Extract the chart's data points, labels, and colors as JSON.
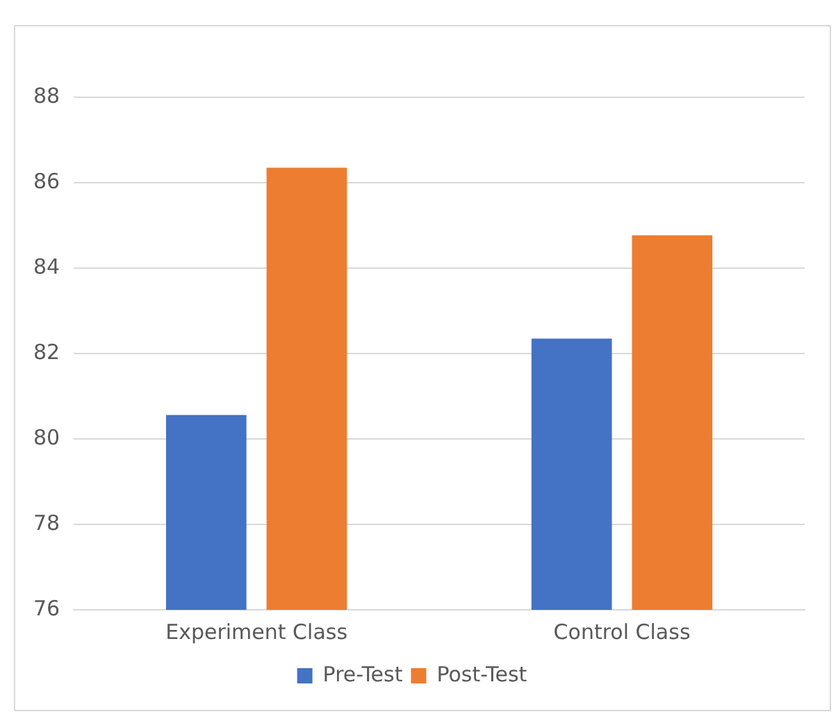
{
  "chart_data": {
    "type": "bar",
    "categories": [
      "Experiment Class",
      "Control Class"
    ],
    "series": [
      {
        "name": "Pre-Test",
        "color": "#4472c4",
        "values": [
          80.56,
          82.35
        ]
      },
      {
        "name": "Post-Test",
        "color": "#ed7d31",
        "values": [
          86.35,
          84.77
        ]
      }
    ],
    "ylim": [
      76,
      88
    ],
    "yticks": [
      76,
      78,
      80,
      82,
      84,
      86,
      88
    ],
    "grid": "y",
    "legend": "bottom"
  }
}
